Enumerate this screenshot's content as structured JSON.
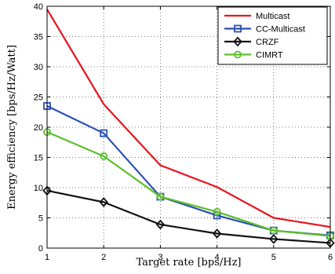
{
  "chart_data": {
    "type": "line",
    "title": "",
    "xlabel": "Target rate [bps/Hz]",
    "ylabel": "Energy efficiency [bps/Hz/Watt]",
    "x": [
      1,
      2,
      3,
      4,
      5,
      6
    ],
    "xlim": [
      1,
      6
    ],
    "ylim": [
      0,
      40
    ],
    "xticks": [
      1,
      2,
      3,
      4,
      5,
      6
    ],
    "yticks": [
      0,
      5,
      10,
      15,
      20,
      25,
      30,
      35,
      40
    ],
    "grid": true,
    "grid_style": "dotted",
    "legend_position": "top-right",
    "series": [
      {
        "name": "Multicast",
        "color": "#e8141e",
        "marker": "none",
        "values": [
          39.5,
          23.8,
          13.7,
          10.1,
          5.0,
          3.5
        ]
      },
      {
        "name": "CC-Multicast",
        "color": "#2b50b5",
        "marker": "square",
        "values": [
          23.5,
          19.0,
          8.5,
          5.4,
          2.9,
          2.1
        ]
      },
      {
        "name": "CRZF",
        "color": "#111111",
        "marker": "diamond",
        "values": [
          9.5,
          7.6,
          3.9,
          2.4,
          1.5,
          0.85
        ]
      },
      {
        "name": "CIMRT",
        "color": "#5cbf2a",
        "marker": "circle",
        "values": [
          19.2,
          15.2,
          8.5,
          6.0,
          2.9,
          2.0
        ]
      }
    ]
  }
}
